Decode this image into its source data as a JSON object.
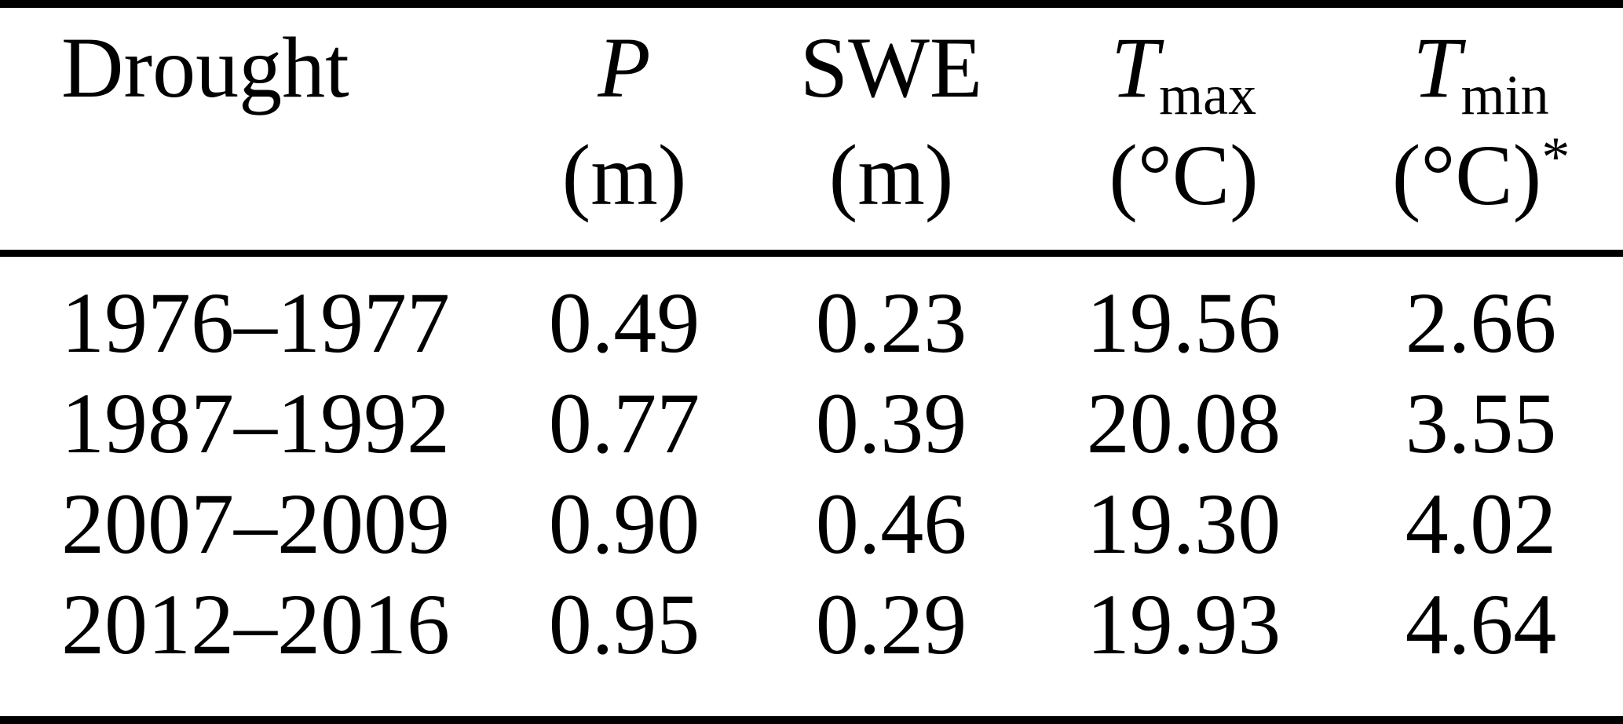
{
  "table": {
    "columns": [
      {
        "name": "Drought",
        "sub": "",
        "unit": "",
        "star": ""
      },
      {
        "name": "P",
        "sub": "",
        "unit": "(m)",
        "star": ""
      },
      {
        "name": "SWE",
        "sub": "",
        "unit": "(m)",
        "star": ""
      },
      {
        "name": "T",
        "sub": "max",
        "unit": "(°C)",
        "star": ""
      },
      {
        "name": "T",
        "sub": "min",
        "unit": "(°C)",
        "star": "*"
      }
    ],
    "rows": [
      {
        "drought": "1976–1977",
        "p": "0.49",
        "swe": "0.23",
        "tmax": "19.56",
        "tmin": "2.66"
      },
      {
        "drought": "1987–1992",
        "p": "0.77",
        "swe": "0.39",
        "tmax": "20.08",
        "tmin": "3.55"
      },
      {
        "drought": "2007–2009",
        "p": "0.90",
        "swe": "0.46",
        "tmax": "19.30",
        "tmin": "4.02"
      },
      {
        "drought": "2012–2016",
        "p": "0.95",
        "swe": "0.29",
        "tmax": "19.93",
        "tmin": "4.64"
      }
    ],
    "colors": {
      "text": "#000000",
      "rule": "#000000",
      "background": "#ffffff"
    }
  },
  "chart_data": {
    "type": "table",
    "columns": [
      "Drought",
      "P (m)",
      "SWE (m)",
      "Tmax (°C)",
      "Tmin (°C)*"
    ],
    "rows": [
      [
        "1976–1977",
        0.49,
        0.23,
        19.56,
        2.66
      ],
      [
        "1987–1992",
        0.77,
        0.39,
        20.08,
        3.55
      ],
      [
        "2007–2009",
        0.9,
        0.46,
        19.3,
        4.02
      ],
      [
        "2012–2016",
        0.95,
        0.29,
        19.93,
        4.64
      ]
    ]
  }
}
